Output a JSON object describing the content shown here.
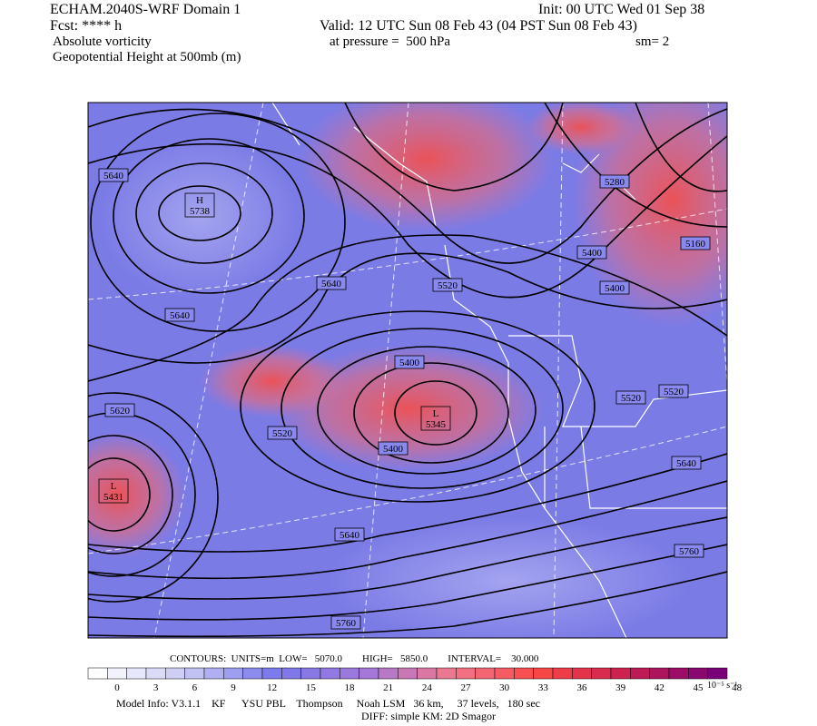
{
  "header": {
    "model": "ECHAM.2040S-WRF Domain 1",
    "init": "Init: 00 UTC Wed 01 Sep 38",
    "fcst": "Fcst: **** h",
    "valid": "Valid: 12 UTC Sun 08 Feb 43 (04 PST Sun 08 Feb 43)",
    "field1": "Absolute vorticity",
    "pressure": "at pressure =  500 hPa",
    "smooth": "sm= 2",
    "field2": "Geopotential Height at 500mb (m)"
  },
  "map": {
    "contour_labels": [
      "5640",
      "5640",
      "5640",
      "5280",
      "5160",
      "5400",
      "5400",
      "5520",
      "5400",
      "5400",
      "5520",
      "5520",
      "5620",
      "5520",
      "5640",
      "5640",
      "5760",
      "5760"
    ],
    "centers": [
      {
        "type": "H",
        "value": "5738"
      },
      {
        "type": "L",
        "value": "5345"
      },
      {
        "type": "L",
        "value": "5431"
      }
    ]
  },
  "footer": {
    "contours": "CONTOURS:  UNITS=m  LOW=   5070.0        HIGH=   5850.0        INTERVAL=    30.000",
    "colorbar_ticks": [
      0,
      3,
      6,
      9,
      12,
      15,
      18,
      21,
      24,
      27,
      30,
      33,
      36,
      39,
      42,
      45,
      48
    ],
    "colorbar_units": "10⁻⁵ s⁻¹",
    "model_info": "Model Info: V3.1.1    KF      YSU PBL    Thompson     Noah LSM   36 km,     37 levels,   180 sec",
    "diff": "DIFF: simple KM: 2D Smagor"
  }
}
